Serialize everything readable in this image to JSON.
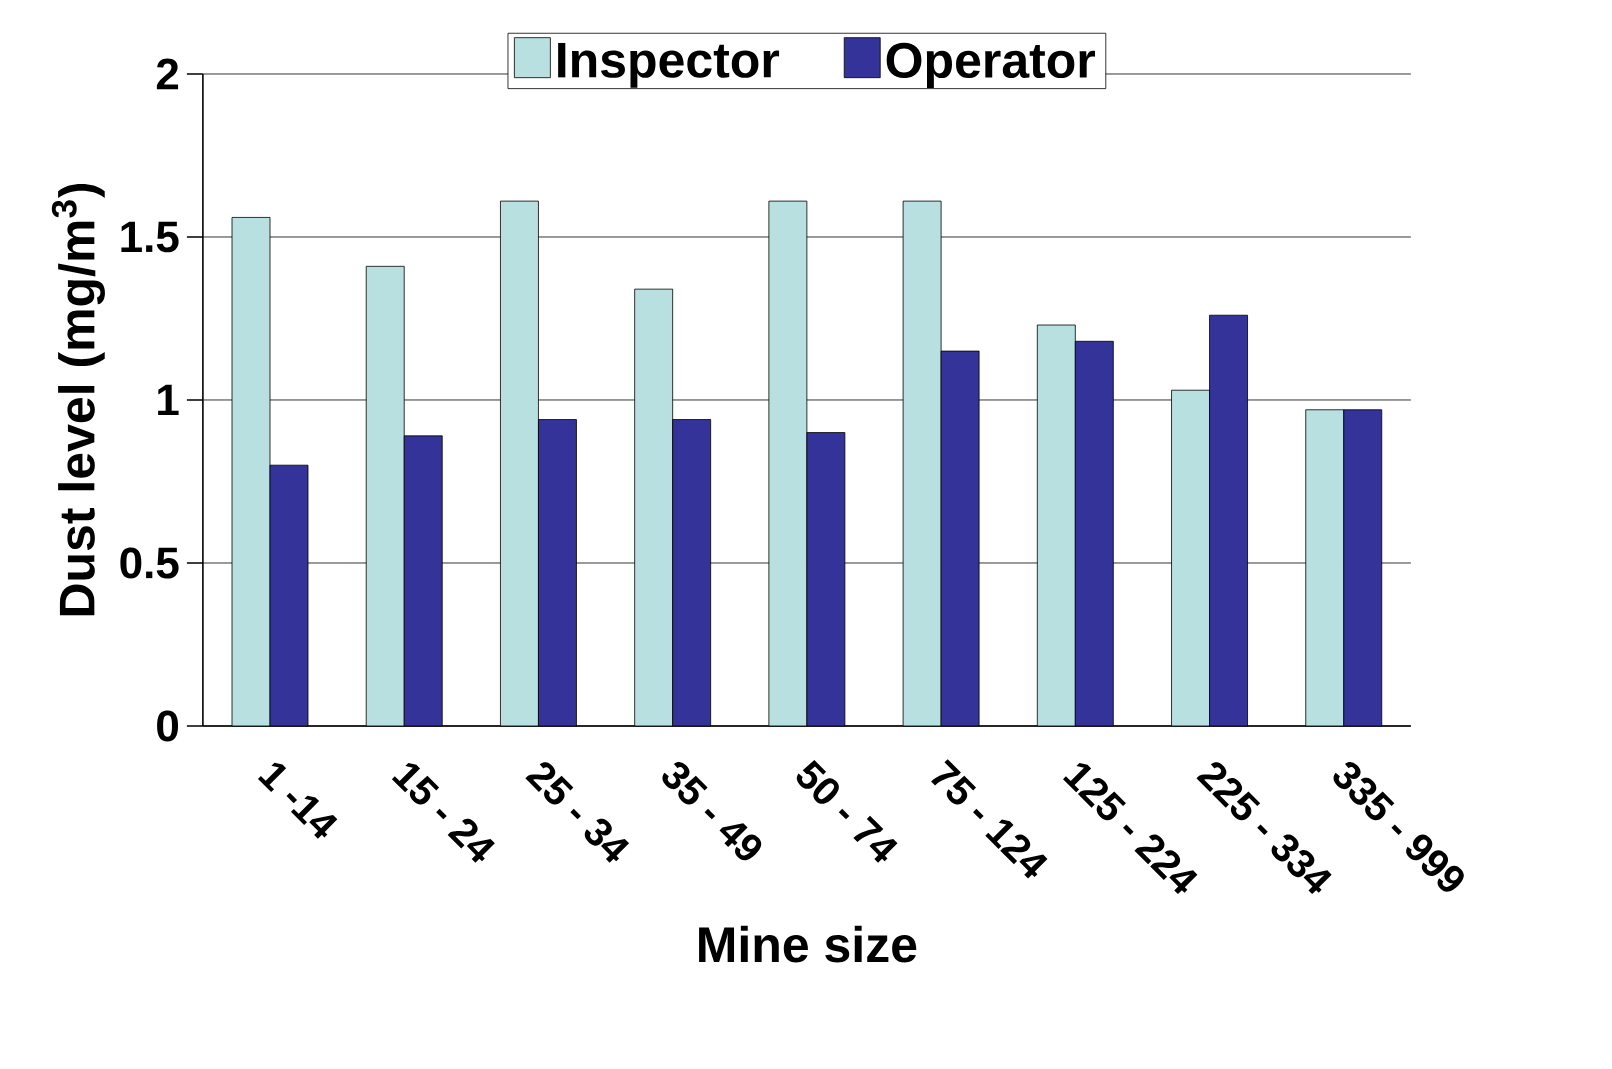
{
  "chart_data": {
    "type": "bar",
    "xlabel": "Mine size",
    "ylabel": "Dust level (mg/m$^{3}$)",
    "categories": [
      "1 -14",
      "15 - 24",
      "25 - 34",
      "35 - 49",
      "50 - 74",
      "75 - 124",
      "125 - 224",
      "225 - 334",
      "335 - 999"
    ],
    "series": [
      {
        "name": "Inspector",
        "color": "#b8e0e0",
        "values": [
          1.56,
          1.41,
          1.61,
          1.34,
          1.61,
          1.61,
          1.23,
          1.03,
          0.97
        ]
      },
      {
        "name": "Operator",
        "color": "#333399",
        "values": [
          0.8,
          0.89,
          0.94,
          0.94,
          0.9,
          1.15,
          1.18,
          1.26,
          0.97
        ]
      }
    ],
    "ylim": [
      0,
      2
    ],
    "yticks": [
      0,
      0.5,
      1,
      1.5,
      2
    ],
    "grid": "y",
    "legend": "top"
  }
}
